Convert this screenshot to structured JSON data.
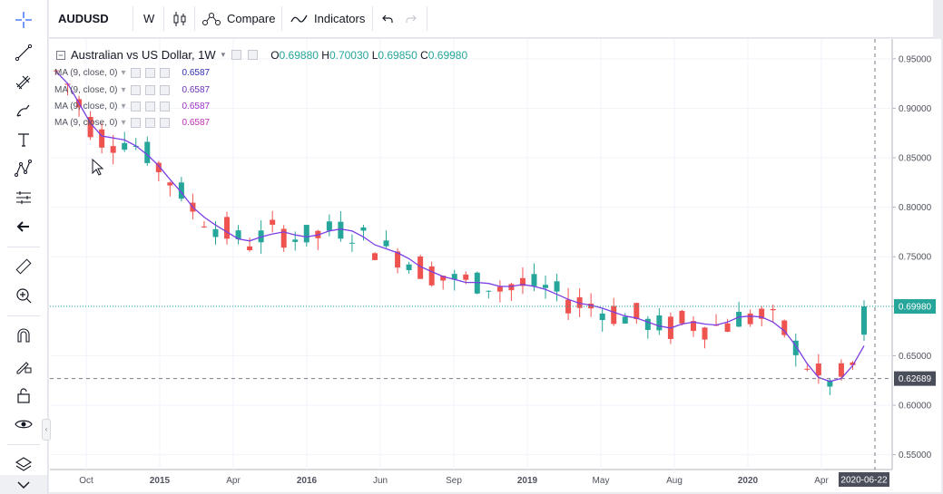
{
  "toolbar": {
    "symbol": "AUDUSD",
    "interval": "W",
    "compare_label": "Compare",
    "indicators_label": "Indicators"
  },
  "legend": {
    "title": "Australian vs US Dollar, 1W",
    "open_label": "O",
    "open": "0.69880",
    "high_label": "H",
    "high": "0.70030",
    "low_label": "L",
    "low": "0.69850",
    "close_label": "C",
    "close": "0.69980"
  },
  "indicators": [
    {
      "name": "MA (9, close, 0)",
      "value": "0.6587",
      "color": "#2f2fb0"
    },
    {
      "name": "MA (9, close, 0)",
      "value": "0.6587",
      "color": "#6b2fb8"
    },
    {
      "name": "MA (9, close, 0)",
      "value": "0.6587",
      "color": "#9b2fc8"
    },
    {
      "name": "MA (9, close, 0)",
      "value": "0.6587",
      "color": "#c02fb8"
    }
  ],
  "colors": {
    "up": "#26a69a",
    "down": "#ef5350",
    "ma": "#7b3fe4",
    "current_line": "#26a69a"
  },
  "chart_data": {
    "type": "line",
    "price_axis": [
      "0.95000",
      "0.90000",
      "0.85000",
      "0.80000",
      "0.75000",
      "0.70000",
      "0.65000",
      "0.60000",
      "0.55000"
    ],
    "time_axis": [
      "Oct",
      "2015",
      "Apr",
      "2016",
      "Jun",
      "Sep",
      "2019",
      "May",
      "Aug",
      "2020",
      "Apr",
      "2020-06-22"
    ],
    "current_price_label": "0.69980",
    "crosshair_price_label": "0.62689",
    "ylim": [
      0.535,
      0.97
    ],
    "series": [
      {
        "values": [
          0.937,
          0.925,
          0.905,
          0.885,
          0.872,
          0.87,
          0.868,
          0.862,
          0.853,
          0.842,
          0.828,
          0.815,
          0.8,
          0.79,
          0.782,
          0.775,
          0.768,
          0.766,
          0.77,
          0.773,
          0.775,
          0.772,
          0.77,
          0.772,
          0.776,
          0.778,
          0.776,
          0.77,
          0.762,
          0.758,
          0.754,
          0.748,
          0.74,
          0.735,
          0.73,
          0.727,
          0.724,
          0.724,
          0.723,
          0.72,
          0.72,
          0.722,
          0.72,
          0.717,
          0.712,
          0.707,
          0.703,
          0.701,
          0.698,
          0.694,
          0.69,
          0.688,
          0.684,
          0.68,
          0.678,
          0.682,
          0.684,
          0.682,
          0.681,
          0.684,
          0.689,
          0.69,
          0.689,
          0.684,
          0.675,
          0.66,
          0.642,
          0.628,
          0.624,
          0.627,
          0.64,
          0.66
        ]
      }
    ]
  }
}
